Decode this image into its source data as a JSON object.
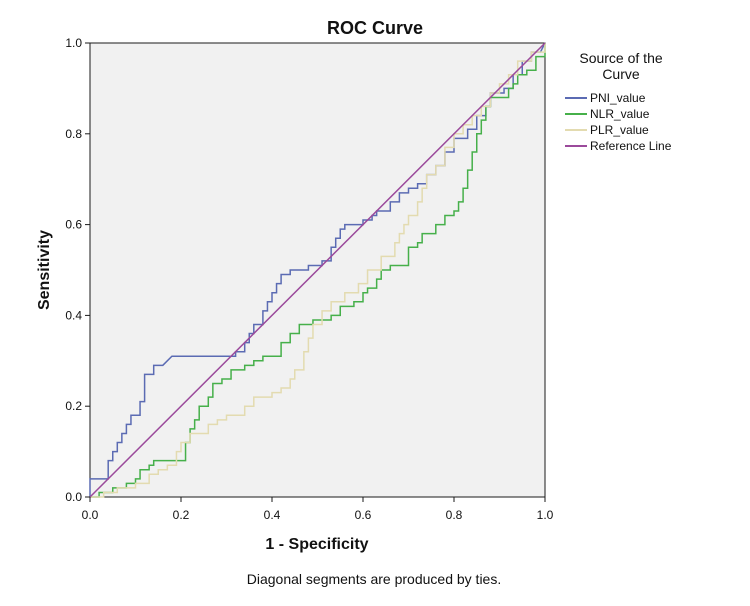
{
  "chart_data": {
    "type": "line",
    "title": "ROC Curve",
    "xlabel": "1 - Specificity",
    "ylabel": "Sensitivity",
    "xlim": [
      0,
      1
    ],
    "ylim": [
      0,
      1
    ],
    "grid": false,
    "legend_position": "right",
    "legend_title_lines": [
      "Source of the",
      "Curve"
    ],
    "x_ticks": [
      0.0,
      0.2,
      0.4,
      0.6,
      0.8,
      1.0
    ],
    "y_ticks": [
      0.0,
      0.2,
      0.4,
      0.6,
      0.8,
      1.0
    ],
    "x_tick_labels": [
      "0.0",
      "0.2",
      "0.4",
      "0.6",
      "0.8",
      "1.0"
    ],
    "y_tick_labels": [
      "0.0",
      "0.2",
      "0.4",
      "0.6",
      "0.8",
      "1.0"
    ],
    "footnote": "Diagonal segments are produced by ties.",
    "series": [
      {
        "name": "PNI_value",
        "color": "#5b6bb3",
        "points": [
          [
            0.0,
            0.0
          ],
          [
            0.0,
            0.04
          ],
          [
            0.04,
            0.04
          ],
          [
            0.04,
            0.08
          ],
          [
            0.05,
            0.08
          ],
          [
            0.05,
            0.1
          ],
          [
            0.06,
            0.1
          ],
          [
            0.06,
            0.12
          ],
          [
            0.07,
            0.12
          ],
          [
            0.07,
            0.14
          ],
          [
            0.08,
            0.14
          ],
          [
            0.08,
            0.16
          ],
          [
            0.09,
            0.16
          ],
          [
            0.09,
            0.18
          ],
          [
            0.11,
            0.18
          ],
          [
            0.11,
            0.21
          ],
          [
            0.12,
            0.21
          ],
          [
            0.12,
            0.27
          ],
          [
            0.14,
            0.27
          ],
          [
            0.14,
            0.29
          ],
          [
            0.16,
            0.29
          ],
          [
            0.18,
            0.31
          ],
          [
            0.32,
            0.31
          ],
          [
            0.32,
            0.32
          ],
          [
            0.34,
            0.32
          ],
          [
            0.34,
            0.34
          ],
          [
            0.35,
            0.34
          ],
          [
            0.35,
            0.36
          ],
          [
            0.36,
            0.36
          ],
          [
            0.36,
            0.38
          ],
          [
            0.38,
            0.38
          ],
          [
            0.38,
            0.41
          ],
          [
            0.39,
            0.41
          ],
          [
            0.39,
            0.43
          ],
          [
            0.4,
            0.43
          ],
          [
            0.4,
            0.45
          ],
          [
            0.41,
            0.45
          ],
          [
            0.41,
            0.47
          ],
          [
            0.42,
            0.47
          ],
          [
            0.42,
            0.49
          ],
          [
            0.44,
            0.49
          ],
          [
            0.44,
            0.5
          ],
          [
            0.48,
            0.5
          ],
          [
            0.48,
            0.51
          ],
          [
            0.51,
            0.51
          ],
          [
            0.51,
            0.52
          ],
          [
            0.53,
            0.52
          ],
          [
            0.53,
            0.55
          ],
          [
            0.54,
            0.55
          ],
          [
            0.54,
            0.57
          ],
          [
            0.55,
            0.57
          ],
          [
            0.55,
            0.59
          ],
          [
            0.56,
            0.59
          ],
          [
            0.56,
            0.6
          ],
          [
            0.6,
            0.6
          ],
          [
            0.6,
            0.61
          ],
          [
            0.62,
            0.61
          ],
          [
            0.62,
            0.62
          ],
          [
            0.63,
            0.62
          ],
          [
            0.63,
            0.63
          ],
          [
            0.66,
            0.63
          ],
          [
            0.66,
            0.65
          ],
          [
            0.68,
            0.65
          ],
          [
            0.68,
            0.67
          ],
          [
            0.7,
            0.67
          ],
          [
            0.7,
            0.68
          ],
          [
            0.72,
            0.68
          ],
          [
            0.72,
            0.69
          ],
          [
            0.74,
            0.69
          ],
          [
            0.74,
            0.71
          ],
          [
            0.76,
            0.71
          ],
          [
            0.76,
            0.73
          ],
          [
            0.78,
            0.73
          ],
          [
            0.78,
            0.76
          ],
          [
            0.8,
            0.76
          ],
          [
            0.8,
            0.79
          ],
          [
            0.83,
            0.79
          ],
          [
            0.83,
            0.81
          ],
          [
            0.85,
            0.81
          ],
          [
            0.85,
            0.84
          ],
          [
            0.87,
            0.84
          ],
          [
            0.87,
            0.86
          ],
          [
            0.88,
            0.86
          ],
          [
            0.88,
            0.89
          ],
          [
            0.91,
            0.89
          ],
          [
            0.91,
            0.9
          ],
          [
            0.93,
            0.9
          ],
          [
            0.93,
            0.93
          ],
          [
            0.95,
            0.93
          ],
          [
            0.95,
            0.96
          ],
          [
            0.97,
            0.96
          ],
          [
            0.97,
            0.98
          ],
          [
            0.99,
            0.98
          ],
          [
            1.0,
            1.0
          ]
        ]
      },
      {
        "name": "NLR_value",
        "color": "#46b04a",
        "points": [
          [
            0.0,
            0.0
          ],
          [
            0.02,
            0.0
          ],
          [
            0.02,
            0.01
          ],
          [
            0.05,
            0.01
          ],
          [
            0.05,
            0.02
          ],
          [
            0.08,
            0.02
          ],
          [
            0.08,
            0.03
          ],
          [
            0.1,
            0.03
          ],
          [
            0.1,
            0.04
          ],
          [
            0.11,
            0.04
          ],
          [
            0.11,
            0.06
          ],
          [
            0.13,
            0.06
          ],
          [
            0.13,
            0.07
          ],
          [
            0.14,
            0.07
          ],
          [
            0.14,
            0.08
          ],
          [
            0.21,
            0.08
          ],
          [
            0.21,
            0.12
          ],
          [
            0.22,
            0.12
          ],
          [
            0.22,
            0.15
          ],
          [
            0.23,
            0.15
          ],
          [
            0.23,
            0.17
          ],
          [
            0.24,
            0.17
          ],
          [
            0.24,
            0.2
          ],
          [
            0.26,
            0.2
          ],
          [
            0.26,
            0.22
          ],
          [
            0.27,
            0.22
          ],
          [
            0.27,
            0.25
          ],
          [
            0.29,
            0.25
          ],
          [
            0.29,
            0.26
          ],
          [
            0.31,
            0.26
          ],
          [
            0.31,
            0.28
          ],
          [
            0.34,
            0.28
          ],
          [
            0.34,
            0.29
          ],
          [
            0.36,
            0.29
          ],
          [
            0.36,
            0.3
          ],
          [
            0.38,
            0.3
          ],
          [
            0.38,
            0.31
          ],
          [
            0.42,
            0.31
          ],
          [
            0.42,
            0.34
          ],
          [
            0.44,
            0.34
          ],
          [
            0.44,
            0.36
          ],
          [
            0.46,
            0.36
          ],
          [
            0.46,
            0.38
          ],
          [
            0.49,
            0.38
          ],
          [
            0.49,
            0.39
          ],
          [
            0.53,
            0.39
          ],
          [
            0.53,
            0.4
          ],
          [
            0.55,
            0.4
          ],
          [
            0.55,
            0.42
          ],
          [
            0.58,
            0.42
          ],
          [
            0.58,
            0.43
          ],
          [
            0.6,
            0.43
          ],
          [
            0.6,
            0.45
          ],
          [
            0.61,
            0.45
          ],
          [
            0.61,
            0.46
          ],
          [
            0.63,
            0.46
          ],
          [
            0.63,
            0.48
          ],
          [
            0.64,
            0.48
          ],
          [
            0.64,
            0.5
          ],
          [
            0.66,
            0.5
          ],
          [
            0.66,
            0.51
          ],
          [
            0.7,
            0.51
          ],
          [
            0.7,
            0.55
          ],
          [
            0.72,
            0.55
          ],
          [
            0.72,
            0.56
          ],
          [
            0.73,
            0.56
          ],
          [
            0.73,
            0.58
          ],
          [
            0.76,
            0.58
          ],
          [
            0.76,
            0.6
          ],
          [
            0.78,
            0.6
          ],
          [
            0.78,
            0.62
          ],
          [
            0.8,
            0.62
          ],
          [
            0.8,
            0.63
          ],
          [
            0.81,
            0.63
          ],
          [
            0.81,
            0.65
          ],
          [
            0.82,
            0.65
          ],
          [
            0.82,
            0.68
          ],
          [
            0.83,
            0.68
          ],
          [
            0.83,
            0.72
          ],
          [
            0.84,
            0.72
          ],
          [
            0.84,
            0.76
          ],
          [
            0.85,
            0.76
          ],
          [
            0.85,
            0.8
          ],
          [
            0.86,
            0.8
          ],
          [
            0.86,
            0.83
          ],
          [
            0.87,
            0.83
          ],
          [
            0.87,
            0.86
          ],
          [
            0.88,
            0.86
          ],
          [
            0.88,
            0.88
          ],
          [
            0.92,
            0.88
          ],
          [
            0.92,
            0.9
          ],
          [
            0.93,
            0.9
          ],
          [
            0.93,
            0.91
          ],
          [
            0.94,
            0.91
          ],
          [
            0.94,
            0.93
          ],
          [
            0.96,
            0.93
          ],
          [
            0.96,
            0.94
          ],
          [
            0.98,
            0.94
          ],
          [
            0.98,
            0.97
          ],
          [
            1.0,
            0.97
          ],
          [
            1.0,
            1.0
          ]
        ]
      },
      {
        "name": "PLR_value",
        "color": "#e3dbb0",
        "points": [
          [
            0.0,
            0.0
          ],
          [
            0.03,
            0.0
          ],
          [
            0.03,
            0.01
          ],
          [
            0.06,
            0.01
          ],
          [
            0.06,
            0.02
          ],
          [
            0.1,
            0.02
          ],
          [
            0.1,
            0.03
          ],
          [
            0.13,
            0.03
          ],
          [
            0.13,
            0.05
          ],
          [
            0.15,
            0.05
          ],
          [
            0.15,
            0.06
          ],
          [
            0.17,
            0.06
          ],
          [
            0.17,
            0.07
          ],
          [
            0.19,
            0.07
          ],
          [
            0.19,
            0.1
          ],
          [
            0.2,
            0.1
          ],
          [
            0.2,
            0.12
          ],
          [
            0.22,
            0.12
          ],
          [
            0.22,
            0.14
          ],
          [
            0.26,
            0.14
          ],
          [
            0.26,
            0.16
          ],
          [
            0.28,
            0.16
          ],
          [
            0.28,
            0.17
          ],
          [
            0.3,
            0.17
          ],
          [
            0.3,
            0.18
          ],
          [
            0.34,
            0.18
          ],
          [
            0.34,
            0.2
          ],
          [
            0.36,
            0.2
          ],
          [
            0.36,
            0.22
          ],
          [
            0.4,
            0.22
          ],
          [
            0.4,
            0.23
          ],
          [
            0.42,
            0.23
          ],
          [
            0.42,
            0.24
          ],
          [
            0.44,
            0.24
          ],
          [
            0.44,
            0.26
          ],
          [
            0.45,
            0.26
          ],
          [
            0.45,
            0.28
          ],
          [
            0.47,
            0.28
          ],
          [
            0.47,
            0.32
          ],
          [
            0.48,
            0.32
          ],
          [
            0.48,
            0.35
          ],
          [
            0.49,
            0.35
          ],
          [
            0.49,
            0.38
          ],
          [
            0.51,
            0.38
          ],
          [
            0.51,
            0.41
          ],
          [
            0.53,
            0.41
          ],
          [
            0.53,
            0.43
          ],
          [
            0.56,
            0.43
          ],
          [
            0.56,
            0.45
          ],
          [
            0.59,
            0.45
          ],
          [
            0.59,
            0.47
          ],
          [
            0.61,
            0.47
          ],
          [
            0.61,
            0.5
          ],
          [
            0.64,
            0.5
          ],
          [
            0.64,
            0.53
          ],
          [
            0.67,
            0.53
          ],
          [
            0.67,
            0.56
          ],
          [
            0.68,
            0.56
          ],
          [
            0.68,
            0.58
          ],
          [
            0.69,
            0.58
          ],
          [
            0.69,
            0.6
          ],
          [
            0.7,
            0.6
          ],
          [
            0.7,
            0.62
          ],
          [
            0.72,
            0.62
          ],
          [
            0.72,
            0.65
          ],
          [
            0.73,
            0.65
          ],
          [
            0.73,
            0.68
          ],
          [
            0.74,
            0.68
          ],
          [
            0.74,
            0.71
          ],
          [
            0.76,
            0.71
          ],
          [
            0.76,
            0.73
          ],
          [
            0.78,
            0.73
          ],
          [
            0.78,
            0.77
          ],
          [
            0.8,
            0.77
          ],
          [
            0.8,
            0.8
          ],
          [
            0.82,
            0.8
          ],
          [
            0.82,
            0.82
          ],
          [
            0.84,
            0.82
          ],
          [
            0.84,
            0.84
          ],
          [
            0.86,
            0.84
          ],
          [
            0.86,
            0.86
          ],
          [
            0.88,
            0.86
          ],
          [
            0.88,
            0.89
          ],
          [
            0.9,
            0.89
          ],
          [
            0.9,
            0.91
          ],
          [
            0.92,
            0.91
          ],
          [
            0.92,
            0.93
          ],
          [
            0.94,
            0.93
          ],
          [
            0.94,
            0.96
          ],
          [
            0.97,
            0.96
          ],
          [
            0.97,
            0.98
          ],
          [
            1.0,
            0.98
          ],
          [
            1.0,
            1.0
          ]
        ]
      },
      {
        "name": "Reference Line",
        "color": "#9b4a9b",
        "points": [
          [
            0.0,
            0.0
          ],
          [
            1.0,
            1.0
          ]
        ]
      }
    ]
  }
}
